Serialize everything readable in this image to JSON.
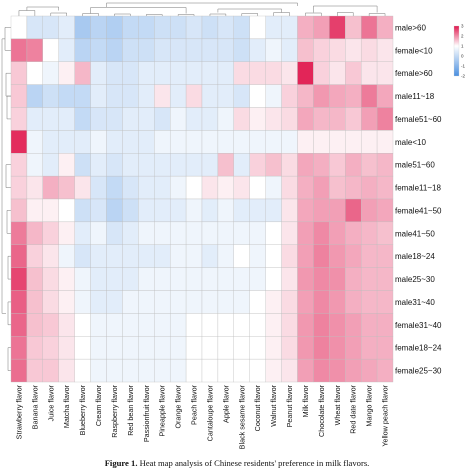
{
  "caption": {
    "label": "Figure 1.",
    "text": "Heat map analysis of Chinese residents' preference in milk flavors."
  },
  "chart_data": {
    "type": "heatmap",
    "title": "",
    "xlabel": "",
    "ylabel": "",
    "colorscale": {
      "low": "#4a8fe0",
      "mid": "#ffffff",
      "high": "#e0194f",
      "range": [
        -2,
        3
      ],
      "ticks": [
        3,
        2,
        1,
        0,
        -1,
        -2
      ]
    },
    "row_dendrogram": true,
    "column_dendrogram": true,
    "legend_position": "top-right",
    "columns": [
      "Strawberry flavor",
      "Banana flavor",
      "Juice flavor",
      "Matcha flavor",
      "Blueberry flavor",
      "Cream flavor",
      "Raspberry flavor",
      "Red bean flavor",
      "Passionfruit flavor",
      "Pineapple flavor",
      "Orange flavor",
      "Peach flavor",
      "Cantaloupe flavor",
      "Apple flavor",
      "Black sesame flavor",
      "Coconut flavor",
      "Walnut flavor",
      "Peanut flavor",
      "Milk flavor",
      "Chocolate flavor",
      "Wheat flavor",
      "Red date flavor",
      "Mango flavor",
      "Yellow peach flavor"
    ],
    "rows": [
      "male>60",
      "female<10",
      "female>60",
      "male11~18",
      "female51~60",
      "male<10",
      "male51~60",
      "female11~18",
      "female41~50",
      "male41~50",
      "male18~24",
      "male25~30",
      "male31~40",
      "female31~40",
      "female18~24",
      "female25~30"
    ],
    "values": [
      [
        0.0,
        -0.3,
        -0.3,
        -0.2,
        -0.8,
        -0.6,
        -0.7,
        -0.5,
        -0.5,
        -0.4,
        -0.4,
        -0.3,
        -0.4,
        -0.3,
        -0.4,
        0.0,
        -0.2,
        -0.2,
        0.8,
        1.0,
        2.4,
        0.6,
        1.6,
        0.8
      ],
      [
        1.6,
        1.4,
        0.0,
        -0.2,
        -0.6,
        -0.5,
        -0.6,
        -0.4,
        -0.4,
        -0.3,
        -0.3,
        -0.3,
        -0.3,
        -0.3,
        -0.4,
        -0.2,
        -0.1,
        -0.2,
        0.6,
        0.4,
        0.3,
        0.2,
        0.3,
        0.2
      ],
      [
        0.5,
        0.0,
        -0.1,
        0.1,
        0.7,
        -0.2,
        -0.3,
        -0.3,
        -0.2,
        -0.2,
        -0.2,
        -0.2,
        -0.2,
        -0.2,
        0.3,
        0.3,
        0.3,
        0.2,
        2.8,
        0.4,
        0.2,
        0.5,
        0.2,
        0.2
      ],
      [
        0.5,
        -0.6,
        -0.4,
        -0.5,
        -0.5,
        -0.2,
        -0.3,
        -0.3,
        -0.2,
        0.2,
        -0.2,
        0.3,
        -0.2,
        -0.2,
        -0.3,
        0.0,
        -0.1,
        0.4,
        0.7,
        1.1,
        0.9,
        0.8,
        1.5,
        0.9
      ],
      [
        0.4,
        -0.2,
        -0.2,
        -0.2,
        -0.5,
        -0.3,
        -0.3,
        -0.2,
        -0.2,
        -0.3,
        -0.1,
        -0.2,
        -0.2,
        -0.1,
        0.3,
        0.1,
        0.2,
        0.3,
        0.9,
        0.7,
        0.7,
        0.5,
        1.0,
        1.4
      ],
      [
        2.7,
        -0.1,
        -0.2,
        -0.2,
        -0.2,
        -0.1,
        -0.2,
        -0.2,
        -0.2,
        -0.1,
        -0.1,
        -0.1,
        -0.1,
        -0.1,
        -0.1,
        -0.1,
        -0.1,
        -0.1,
        0.1,
        0.1,
        0.1,
        0.1,
        0.1,
        0.1
      ],
      [
        0.4,
        -0.1,
        -0.2,
        0.1,
        -0.4,
        -0.2,
        -0.3,
        -0.2,
        -0.2,
        -0.2,
        -0.2,
        -0.2,
        -0.2,
        0.6,
        -0.2,
        0.4,
        0.6,
        0.3,
        0.9,
        0.8,
        0.5,
        0.8,
        0.6,
        0.7
      ],
      [
        0.4,
        0.2,
        0.8,
        0.6,
        0.2,
        -0.3,
        -0.5,
        -0.3,
        -0.2,
        -0.2,
        -0.1,
        0.0,
        0.2,
        0.1,
        0.2,
        0.0,
        -0.1,
        0.3,
        0.8,
        1.0,
        0.6,
        0.7,
        0.8,
        0.7
      ],
      [
        0.6,
        0.1,
        0.1,
        0.0,
        -0.4,
        -0.3,
        -0.6,
        -0.4,
        -0.2,
        -0.2,
        -0.2,
        -0.1,
        -0.2,
        -0.1,
        -0.2,
        -0.2,
        -0.2,
        0.2,
        0.9,
        1.0,
        1.0,
        1.8,
        1.0,
        0.9
      ],
      [
        1.5,
        0.7,
        0.4,
        0.1,
        -0.2,
        -0.1,
        -0.3,
        -0.2,
        -0.1,
        -0.1,
        -0.1,
        -0.1,
        -0.1,
        -0.1,
        -0.1,
        -0.1,
        0.0,
        0.2,
        1.0,
        1.3,
        1.0,
        0.8,
        0.7,
        0.6
      ],
      [
        1.8,
        0.4,
        0.2,
        -0.1,
        -0.3,
        -0.2,
        -0.2,
        -0.2,
        -0.2,
        -0.2,
        -0.1,
        -0.1,
        -0.2,
        -0.1,
        0.0,
        -0.1,
        0.0,
        0.3,
        1.0,
        1.4,
        1.1,
        0.9,
        0.7,
        0.7
      ],
      [
        2.3,
        0.6,
        0.3,
        0.1,
        -0.1,
        -0.2,
        -0.2,
        -0.2,
        -0.1,
        -0.1,
        -0.1,
        -0.1,
        -0.1,
        -0.1,
        -0.1,
        -0.1,
        0.0,
        0.2,
        1.1,
        1.3,
        1.2,
        0.8,
        0.7,
        0.7
      ],
      [
        1.9,
        0.6,
        0.3,
        0.1,
        -0.1,
        -0.2,
        -0.2,
        -0.1,
        -0.1,
        -0.1,
        -0.1,
        -0.1,
        -0.1,
        -0.1,
        -0.1,
        0.0,
        0.1,
        0.3,
        1.0,
        1.3,
        1.1,
        0.8,
        0.7,
        0.7
      ],
      [
        1.8,
        0.6,
        0.5,
        0.2,
        0.0,
        -0.1,
        -0.1,
        -0.1,
        -0.1,
        -0.1,
        -0.1,
        0.0,
        0.0,
        0.0,
        0.0,
        0.0,
        0.1,
        0.3,
        1.1,
        1.4,
        1.2,
        1.0,
        0.8,
        0.8
      ],
      [
        1.6,
        0.5,
        0.4,
        0.2,
        0.0,
        -0.1,
        -0.1,
        -0.1,
        -0.1,
        -0.1,
        -0.1,
        0.0,
        0.0,
        0.0,
        0.0,
        0.0,
        0.1,
        0.3,
        1.1,
        1.4,
        1.2,
        1.0,
        0.8,
        0.8
      ],
      [
        1.7,
        0.5,
        0.5,
        0.2,
        0.0,
        -0.1,
        -0.1,
        -0.1,
        -0.1,
        -0.1,
        -0.1,
        0.0,
        0.0,
        0.0,
        0.0,
        0.0,
        0.1,
        0.2,
        1.0,
        1.3,
        1.2,
        1.0,
        0.9,
        0.8
      ]
    ]
  }
}
